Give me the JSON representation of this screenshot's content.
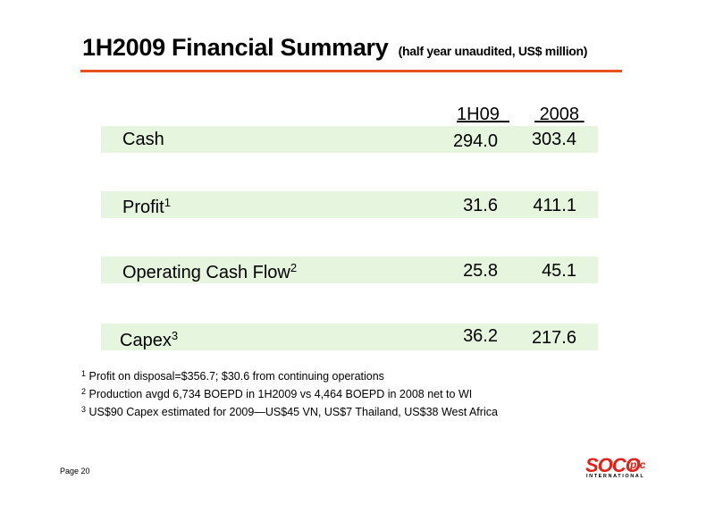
{
  "title": {
    "main": "1H2009 Financial Summary",
    "sub": "(half year unaudited, US$ million)"
  },
  "columns": [
    "1H09",
    "2008"
  ],
  "rows": [
    {
      "label": "Cash",
      "sup": "",
      "v1": "294.0",
      "v2": "303.4"
    },
    {
      "label": "Profit",
      "sup": "1",
      "v1": "31.6",
      "v2": "411.1"
    },
    {
      "label": "Operating Cash Flow",
      "sup": "2",
      "v1": "25.8",
      "v2": "45.1"
    },
    {
      "label": "Capex",
      "sup": "3",
      "v1": "36.2",
      "v2": "217.6"
    }
  ],
  "footnotes": [
    {
      "num": "1",
      "text": "Profit on disposal=$356.7; $30.6 from continuing operations"
    },
    {
      "num": "2",
      "text": "Production avgd 6,734 BOEPD in 1H2009 vs 4,464 BOEPD in 2008 net to WI"
    },
    {
      "num": "3",
      "text": "US$90 Capex estimated for 2009—US$45 VN, US$7 Thailand, US$38 West Africa"
    }
  ],
  "page_label": "Page 20",
  "logo": {
    "word": "SOCO",
    "suffix": "plc",
    "tagline": "INTERNATIONAL"
  },
  "colors": {
    "accent": "#e8501f",
    "row_bg": "#e6f5dd",
    "logo_red": "#e32119"
  }
}
